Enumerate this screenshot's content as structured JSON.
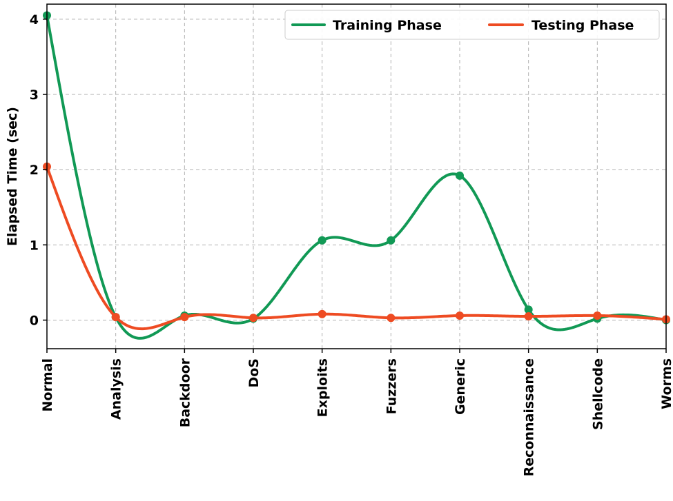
{
  "chart_data": {
    "type": "line",
    "title": "",
    "xlabel": "",
    "ylabel": "Elapsed Time (sec)",
    "ylim": [
      -0.38,
      4.2
    ],
    "yticks": [
      0,
      1,
      2,
      3,
      4
    ],
    "grid": true,
    "legend_position": "top-right",
    "categories": [
      "Normal",
      "Analysis",
      "Backdoor",
      "DoS",
      "Exploits",
      "Fuzzers",
      "Generic",
      "Reconnaissance",
      "Shellcode",
      "Worms"
    ],
    "series": [
      {
        "name": "Training Phase",
        "color": "#119955",
        "values": [
          4.05,
          0.04,
          0.06,
          0.02,
          1.06,
          1.06,
          1.92,
          0.14,
          0.02,
          0.0
        ]
      },
      {
        "name": "Testing Phase",
        "color": "#ee4b22",
        "values": [
          2.04,
          0.04,
          0.04,
          0.03,
          0.08,
          0.03,
          0.06,
          0.05,
          0.06,
          0.01
        ]
      }
    ]
  }
}
